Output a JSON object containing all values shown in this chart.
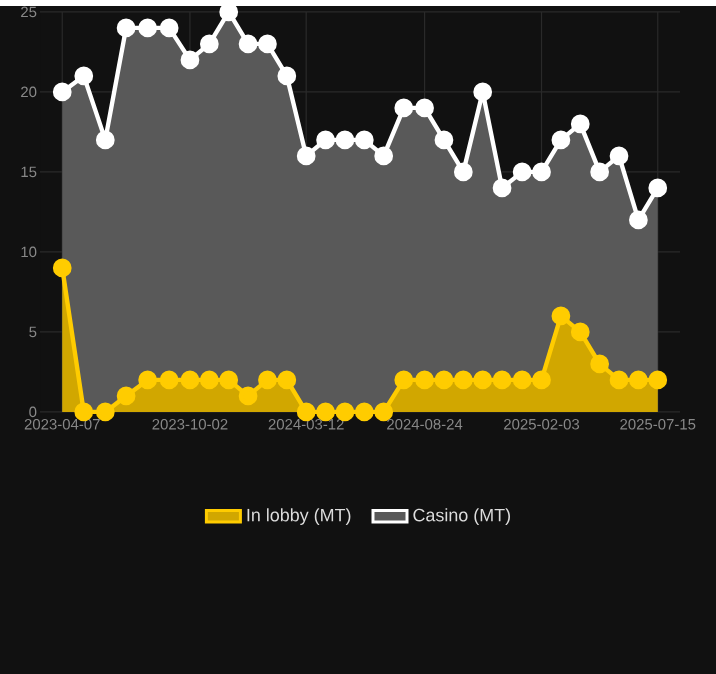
{
  "chart_data": {
    "type": "area",
    "x": [
      "2023-04-07",
      "2023-05-07",
      "2023-06-06",
      "2023-07-05",
      "2023-08-04",
      "2023-09-03",
      "2023-10-02",
      "2023-10-29",
      "2023-11-25",
      "2023-12-22",
      "2024-01-18",
      "2024-02-14",
      "2024-03-12",
      "2024-04-08",
      "2024-05-05",
      "2024-06-01",
      "2024-06-28",
      "2024-07-26",
      "2024-08-24",
      "2024-09-20",
      "2024-10-17",
      "2024-11-13",
      "2024-12-10",
      "2025-01-07",
      "2025-02-03",
      "2025-03-02",
      "2025-03-29",
      "2025-04-25",
      "2025-05-22",
      "2025-06-18",
      "2025-07-15"
    ],
    "series": [
      {
        "name": "In lobby (MT)",
        "color": "#ffcc00",
        "values": [
          9,
          0,
          0,
          1,
          2,
          2,
          2,
          2,
          2,
          1,
          2,
          2,
          0,
          0,
          0,
          0,
          0,
          2,
          2,
          2,
          2,
          2,
          2,
          2,
          2,
          6,
          5,
          3,
          2,
          2,
          2
        ]
      },
      {
        "name": "Casino (MT)",
        "color": "#ffffff",
        "values": [
          20,
          21,
          17,
          24,
          24,
          24,
          22,
          23,
          25,
          23,
          23,
          21,
          16,
          17,
          17,
          17,
          16,
          19,
          19,
          17,
          15,
          20,
          14,
          15,
          15,
          17,
          18,
          15,
          16,
          12,
          14
        ]
      }
    ],
    "xlim": [
      "2023-03-07",
      "2025-08-15"
    ],
    "xticks": [
      "2023-04-07",
      "2023-10-02",
      "2024-03-12",
      "2024-08-24",
      "2025-02-03",
      "2025-07-15"
    ],
    "ylim": [
      0,
      25
    ],
    "yticks": [
      0,
      5,
      10,
      15,
      20,
      25
    ],
    "grid": true,
    "legend": "bottom",
    "marker": "circle",
    "line_style": "solid"
  }
}
